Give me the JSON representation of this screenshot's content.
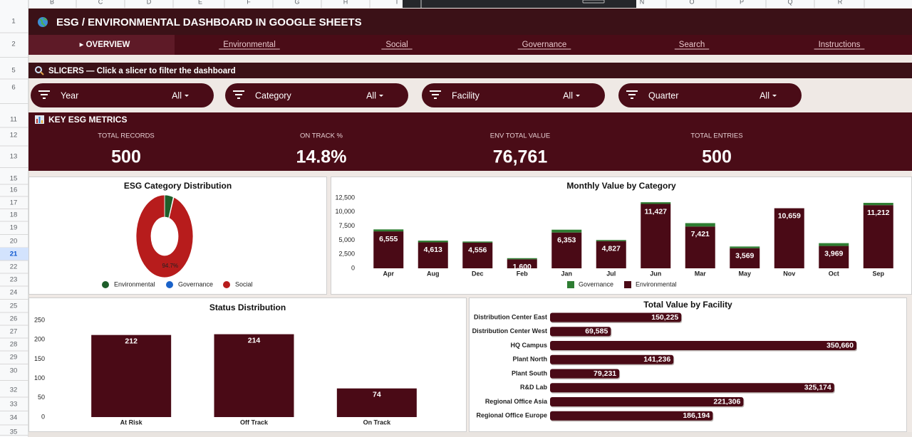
{
  "sheet": {
    "columns": [
      "B",
      "C",
      "D",
      "E",
      "F",
      "G",
      "H",
      "I",
      "N",
      "O",
      "P",
      "Q",
      "R"
    ],
    "rows": [
      "1",
      "2",
      "5",
      "6",
      "11",
      "12",
      "13",
      "15",
      "16",
      "17",
      "18",
      "19",
      "20",
      "21",
      "22",
      "23",
      "24",
      "25",
      "26",
      "27",
      "28",
      "29",
      "30",
      "32",
      "33",
      "34",
      "35"
    ]
  },
  "header": {
    "title": "ESG / ENVIRONMENTAL DASHBOARD IN GOOGLE SHEETS"
  },
  "tabs": [
    "▸ OVERVIEW",
    "Environmental",
    "Social",
    "Governance",
    "Search",
    "Instructions"
  ],
  "slicers": {
    "title": "SLICERS — Click a slicer to filter the dashboard",
    "items": [
      {
        "label": "Year",
        "value": "All"
      },
      {
        "label": "Category",
        "value": "All"
      },
      {
        "label": "Facility",
        "value": "All"
      },
      {
        "label": "Quarter",
        "value": "All"
      }
    ]
  },
  "metrics": {
    "title": "KEY ESG METRICS",
    "items": [
      {
        "label": "TOTAL RECORDS",
        "value": "500"
      },
      {
        "label": "ON TRACK %",
        "value": "14.8%"
      },
      {
        "label": "ENV TOTAL VALUE",
        "value": "76,761"
      },
      {
        "label": "TOTAL ENTRIES",
        "value": "500"
      }
    ]
  },
  "chart_data": [
    {
      "type": "donut",
      "title": "ESG Category Distribution",
      "categories": [
        "Environmental",
        "Governance",
        "Social"
      ],
      "values": [
        5.0,
        0.3,
        94.7
      ],
      "value_labels": [
        null,
        null,
        "94.7%"
      ],
      "colors": [
        "#1e5e2a",
        "#1a62c9",
        "#b71c1c"
      ],
      "legend": "bottom"
    },
    {
      "type": "bar",
      "stacked": true,
      "title": "Monthly Value by Category",
      "categories": [
        "Apr",
        "Aug",
        "Dec",
        "Feb",
        "Jan",
        "Jul",
        "Jun",
        "Mar",
        "May",
        "Nov",
        "Oct",
        "Sep"
      ],
      "series": [
        {
          "name": "Governance",
          "color": "#2e7d32",
          "values": [
            350,
            300,
            200,
            200,
            500,
            200,
            300,
            600,
            300,
            0,
            500,
            400
          ]
        },
        {
          "name": "Environmental",
          "color": "#4a0a16",
          "values": [
            6555,
            4613,
            4556,
            1600,
            6353,
            4827,
            11427,
            7421,
            3569,
            10659,
            3969,
            11212
          ],
          "value_labels": [
            "6,555",
            "4,613",
            "4,556",
            "1,600",
            "6,353",
            "4,827",
            "11,427",
            "7,421",
            "3,569",
            "10,659",
            "3,969",
            "11,212"
          ]
        }
      ],
      "ylim": [
        0,
        12500
      ],
      "yticks": [
        0,
        {
          "value": 2500,
          "label": "2,500"
        },
        {
          "value": 5000,
          "label": "5,000"
        },
        {
          "value": 7500,
          "label": "7,500"
        },
        {
          "value": 10000,
          "label": "10,000"
        },
        {
          "value": 12500,
          "label": "12,500"
        }
      ],
      "legend": "bottom"
    },
    {
      "type": "bar",
      "title": "Status Distribution",
      "categories": [
        "At Risk",
        "Off Track",
        "On Track"
      ],
      "values": [
        212,
        214,
        74
      ],
      "color": "#4a0a16",
      "ylim": [
        0,
        250
      ],
      "yticks": [
        0,
        50,
        100,
        150,
        200,
        250
      ]
    },
    {
      "type": "barh",
      "title": "Total Value by Facility",
      "categories": [
        "Distribution Center East",
        "Distribution Center West",
        "HQ Campus",
        "Plant North",
        "Plant South",
        "R&D Lab",
        "Regional Office Asia",
        "Regional Office Europe"
      ],
      "values": [
        150225,
        69585,
        350660,
        141236,
        79231,
        325174,
        221306,
        186194
      ],
      "value_labels": [
        "150,225",
        "69,585",
        "350,660",
        "141,236",
        "79,231",
        "325,174",
        "221,306",
        "186,194"
      ],
      "color": "#4a0a16"
    }
  ]
}
